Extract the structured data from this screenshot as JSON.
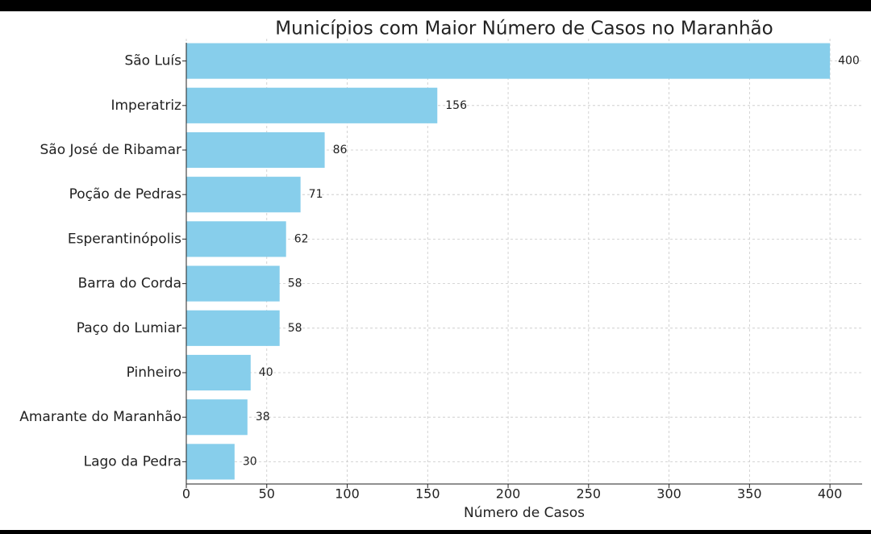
{
  "chart_data": {
    "type": "bar",
    "orientation": "horizontal",
    "title": "Municípios com Maior Número de Casos no Maranhão",
    "x_label": "Número de Casos",
    "categories": [
      "São Luís",
      "Imperatriz",
      "São José de Ribamar",
      "Poção de Pedras",
      "Esperantinópolis",
      "Barra do Corda",
      "Paço do Lumiar",
      "Pinheiro",
      "Amarante do Maranhão",
      "Lago da Pedra"
    ],
    "values": [
      400,
      156,
      86,
      71,
      62,
      58,
      58,
      40,
      38,
      30
    ],
    "color": "#87ceeb",
    "xlim": [
      0,
      420
    ],
    "xticks": [
      0,
      50,
      100,
      150,
      200,
      250,
      300,
      350,
      400
    ],
    "grid": true
  }
}
